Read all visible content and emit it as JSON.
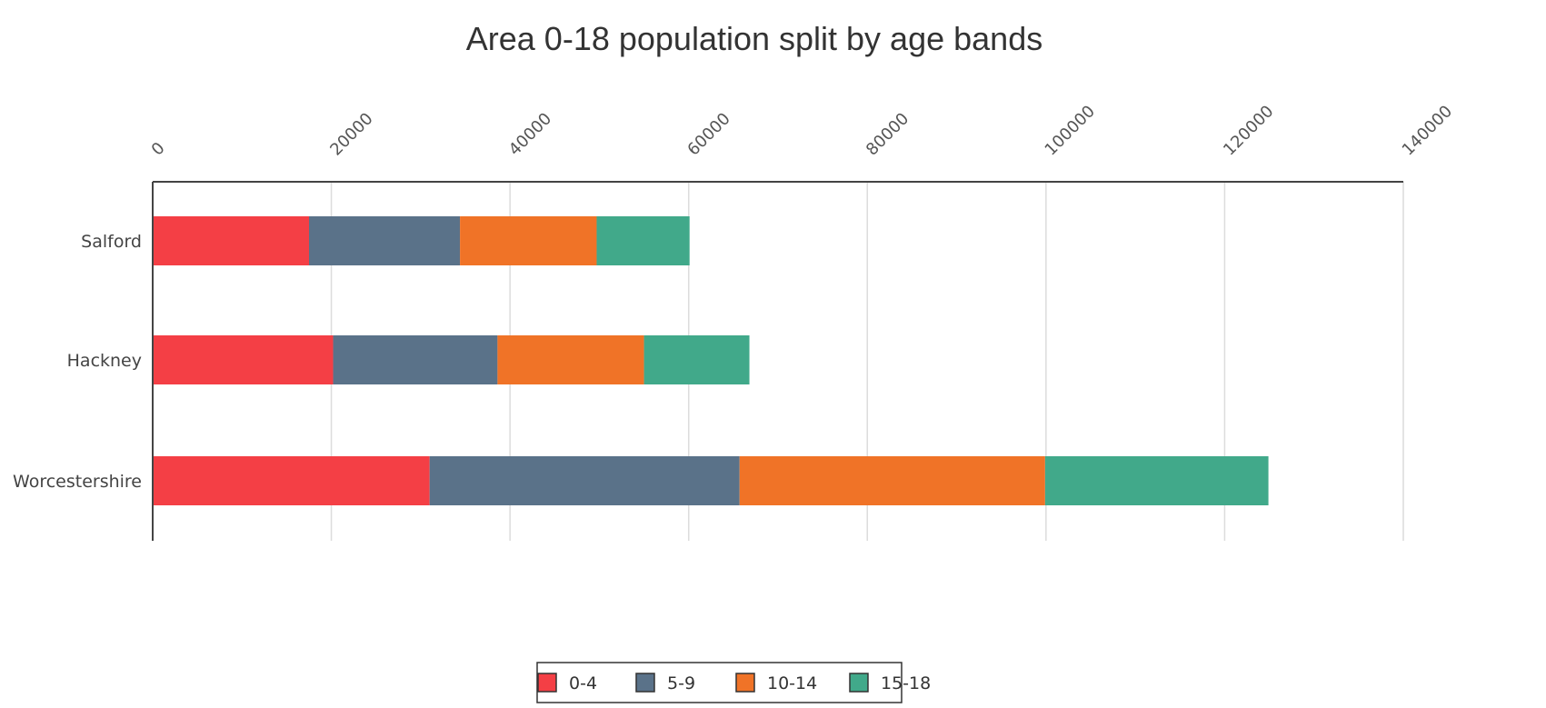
{
  "chart_data": {
    "type": "bar",
    "orientation": "horizontal",
    "stacked": true,
    "title": "Area 0-18 population split by age bands",
    "xlabel": "",
    "ylabel": "",
    "xlim": [
      0,
      140000
    ],
    "x_ticks": [
      "0",
      "20000",
      "40000",
      "60000",
      "80000",
      "100000",
      "120000",
      "140000"
    ],
    "x_axis_position": "top",
    "grid": true,
    "legend_position": "bottom-center",
    "categories": [
      "Salford",
      "Hackney",
      "Worcestershire"
    ],
    "series": [
      {
        "name": "0-4",
        "color": "#f43f45",
        "values": [
          17500,
          20200,
          31000
        ]
      },
      {
        "name": "5-9",
        "color": "#5a7289",
        "values": [
          16900,
          18400,
          34700
        ]
      },
      {
        "name": "10-14",
        "color": "#f07327",
        "values": [
          15300,
          16400,
          34200
        ]
      },
      {
        "name": "15-18",
        "color": "#41a98a",
        "values": [
          10400,
          11800,
          25000
        ]
      }
    ]
  }
}
